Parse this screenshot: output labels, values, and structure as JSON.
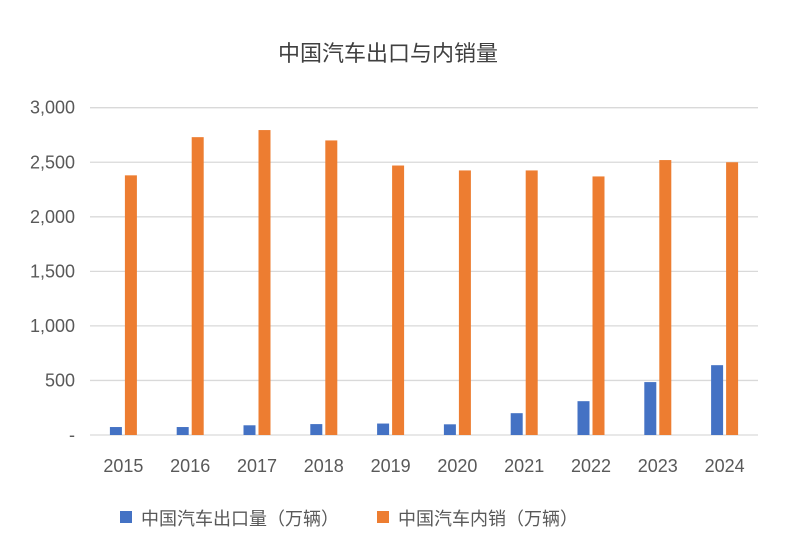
{
  "chart_data": {
    "type": "bar",
    "title": "中国汽车出口与内销量",
    "xlabel": "",
    "ylabel": "",
    "categories": [
      "2015",
      "2016",
      "2017",
      "2018",
      "2019",
      "2020",
      "2021",
      "2022",
      "2023",
      "2024"
    ],
    "series": [
      {
        "name": "中国汽车出口量（万辆）",
        "color": "#4472C4",
        "values": [
          73,
          73,
          89,
          100,
          105,
          98,
          200,
          310,
          485,
          640
        ]
      },
      {
        "name": "中国汽车内销（万辆）",
        "color": "#ED7D31",
        "values": [
          2380,
          2730,
          2795,
          2700,
          2470,
          2425,
          2425,
          2370,
          2520,
          2500
        ]
      }
    ],
    "ylim": [
      0,
      3000
    ],
    "yticks": [
      0,
      500,
      1000,
      1500,
      2000,
      2500,
      3000
    ],
    "ytick_labels": [
      "-",
      "500",
      "1,000",
      "1,500",
      "2,000",
      "2,500",
      "3,000"
    ],
    "grid": true,
    "legend_position": "bottom"
  }
}
